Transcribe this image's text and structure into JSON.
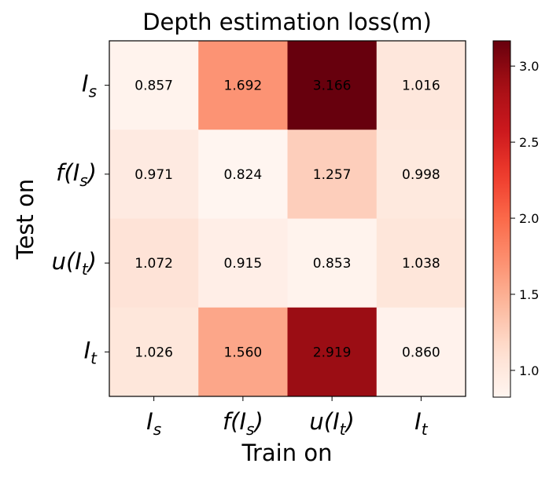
{
  "chart_data": {
    "type": "heatmap",
    "title": "Depth estimation loss(m)",
    "xlabel": "Train on",
    "ylabel": "Test on",
    "x_categories": [
      {
        "main": "I",
        "sub": "s",
        "pre": "",
        "post": ""
      },
      {
        "main": "I",
        "sub": "s",
        "pre": "f(",
        "post": ")"
      },
      {
        "main": "I",
        "sub": "t",
        "pre": "u(",
        "post": ")"
      },
      {
        "main": "I",
        "sub": "t",
        "pre": "",
        "post": ""
      }
    ],
    "y_categories": [
      {
        "main": "I",
        "sub": "s",
        "pre": "",
        "post": ""
      },
      {
        "main": "I",
        "sub": "s",
        "pre": "f(",
        "post": ")"
      },
      {
        "main": "I",
        "sub": "t",
        "pre": "u(",
        "post": ")"
      },
      {
        "main": "I",
        "sub": "t",
        "pre": "",
        "post": ""
      }
    ],
    "values": [
      [
        0.857,
        1.692,
        3.166,
        1.016
      ],
      [
        0.971,
        0.824,
        1.257,
        0.998
      ],
      [
        1.072,
        0.915,
        0.853,
        1.038
      ],
      [
        1.026,
        1.56,
        2.919,
        0.86
      ]
    ],
    "cell_labels": [
      [
        "0.857",
        "1.692",
        "3.166",
        "1.016"
      ],
      [
        "0.971",
        "0.824",
        "1.257",
        "0.998"
      ],
      [
        "1.072",
        "0.915",
        "0.853",
        "1.038"
      ],
      [
        "1.026",
        "1.560",
        "2.919",
        "0.860"
      ]
    ],
    "colormap": "Reds",
    "color_range": [
      0.824,
      3.166
    ],
    "colorbar_ticks": [
      1.0,
      1.5,
      2.0,
      2.5,
      3.0
    ],
    "colorbar_tick_labels": [
      "1.0",
      "1.5",
      "2.0",
      "2.5",
      "3.0"
    ],
    "colors": {
      "low": "#fff5f0",
      "high": "#67000d"
    },
    "grid": false,
    "legend": "colorbar-right"
  }
}
